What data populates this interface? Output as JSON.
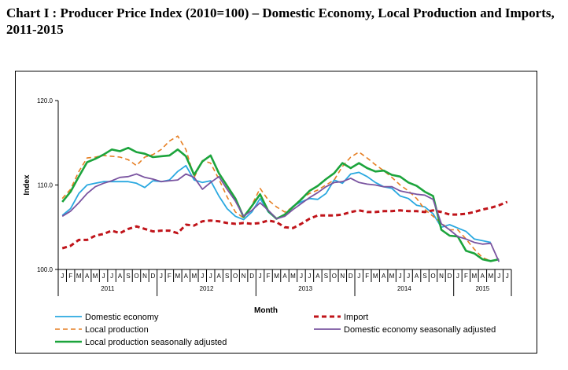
{
  "title": "Chart I : Producer Price Index (2010=100) –  Domestic Economy, Local Production and Imports, 2011-2015",
  "chart_data": {
    "type": "line",
    "title": "Chart I : Producer Price Index (2010=100) –  Domestic Economy, Local Production and Imports, 2011-2015",
    "xlabel": "Month",
    "ylabel": "Index",
    "ylim": [
      100.0,
      120.0
    ],
    "y_ticks": [
      "100.0",
      "110.0",
      "120.0"
    ],
    "grid": false,
    "legend_position": "bottom",
    "month_labels": [
      "J",
      "F",
      "M",
      "A",
      "M",
      "J",
      "J",
      "A",
      "S",
      "O",
      "N",
      "D",
      "J",
      "F",
      "M",
      "A",
      "M",
      "J",
      "J",
      "A",
      "S",
      "O",
      "N",
      "D",
      "J",
      "F",
      "M",
      "A",
      "M",
      "J",
      "J",
      "A",
      "S",
      "O",
      "N",
      "D",
      "J",
      "F",
      "M",
      "A",
      "M",
      "J",
      "J",
      "A",
      "S",
      "O",
      "N",
      "D",
      "J",
      "F",
      "M",
      "A",
      "M",
      "J",
      "J"
    ],
    "year_labels": [
      {
        "label": "2011",
        "start": 0,
        "end": 11
      },
      {
        "label": "2012",
        "start": 12,
        "end": 23
      },
      {
        "label": "2013",
        "start": 24,
        "end": 35
      },
      {
        "label": "2014",
        "start": 36,
        "end": 47
      },
      {
        "label": "2015",
        "start": 48,
        "end": 54
      }
    ],
    "series": [
      {
        "name": "Domestic economy",
        "color": "#29a8e0",
        "style": "solid",
        "values": [
          106.4,
          107.2,
          109.0,
          110.0,
          110.2,
          110.4,
          110.4,
          110.4,
          110.4,
          110.2,
          109.7,
          110.5,
          110.4,
          110.6,
          111.6,
          112.3,
          110.6,
          110.3,
          110.5,
          108.7,
          107.2,
          106.3,
          105.9,
          106.8,
          108.4,
          106.8,
          106.0,
          106.5,
          107.5,
          108.0,
          108.4,
          108.3,
          109.0,
          110.6,
          110.2,
          111.3,
          111.5,
          111.0,
          110.3,
          109.8,
          109.6,
          108.7,
          108.4,
          107.6,
          107.4,
          106.6,
          105.0,
          105.3,
          104.9,
          104.5,
          103.6,
          103.4,
          103.2
        ],
        "offset": 0
      },
      {
        "name": "Local production",
        "color": "#e67e22",
        "style": "dashed",
        "values": [
          108.4,
          109.5,
          111.6,
          113.2,
          113.3,
          113.5,
          113.4,
          113.3,
          113.0,
          112.3,
          113.3,
          113.6,
          114.2,
          115.2,
          115.8,
          114.2,
          110.9,
          112.9,
          112.6,
          110.7,
          108.6,
          106.8,
          106.1,
          107.6,
          109.6,
          108.2,
          107.4,
          106.8,
          107.4,
          108.4,
          109.0,
          109.4,
          110.0,
          110.6,
          112.2,
          113.3,
          113.9,
          113.2,
          112.4,
          111.7,
          110.9,
          110.0,
          109.3,
          108.4,
          107.1,
          106.3,
          105.5,
          104.7,
          104.7,
          103.6,
          102.4,
          101.4,
          101.0
        ],
        "offset": 0
      },
      {
        "name": "Local production seasonally adjusted",
        "color": "#1ca43c",
        "style": "solid",
        "values": [
          108.0,
          109.2,
          111.0,
          112.7,
          113.1,
          113.6,
          114.2,
          114.0,
          114.4,
          113.9,
          113.7,
          113.3,
          113.4,
          113.5,
          114.2,
          113.4,
          111.2,
          112.8,
          113.5,
          111.4,
          109.9,
          108.4,
          106.2,
          107.5,
          108.9,
          106.9,
          106.0,
          106.5,
          107.4,
          108.3,
          109.3,
          109.9,
          110.7,
          111.4,
          112.6,
          112.0,
          112.6,
          112.0,
          111.6,
          111.7,
          111.2,
          111.0,
          110.3,
          109.9,
          109.2,
          108.7,
          104.7,
          104.0,
          103.9,
          102.2,
          101.9,
          101.2,
          101.0,
          101.2
        ],
        "offset": 0
      },
      {
        "name": "Import",
        "color": "#c0141a",
        "style": "dashed",
        "values": [
          102.5,
          102.8,
          103.5,
          103.5,
          104.0,
          104.2,
          104.6,
          104.3,
          104.8,
          105.1,
          104.8,
          104.5,
          104.6,
          104.6,
          104.3,
          105.3,
          105.2,
          105.7,
          105.8,
          105.7,
          105.5,
          105.4,
          105.5,
          105.4,
          105.5,
          105.8,
          105.6,
          105.0,
          104.9,
          105.4,
          106.0,
          106.4,
          106.4,
          106.4,
          106.5,
          106.8,
          107.0,
          106.8,
          106.8,
          106.9,
          106.9,
          107.0,
          106.9,
          106.9,
          106.8,
          107.0,
          106.8,
          106.5,
          106.5,
          106.6,
          106.8,
          107.1,
          107.3,
          107.6,
          108.0
        ],
        "offset": 0
      },
      {
        "name": "Domestic economy seasonally adjusted",
        "color": "#7a54a0",
        "style": "solid",
        "values": [
          106.3,
          106.9,
          107.9,
          109.0,
          109.8,
          110.2,
          110.5,
          110.9,
          111.0,
          111.3,
          110.9,
          110.7,
          110.4,
          110.5,
          110.6,
          111.3,
          110.9,
          109.5,
          110.3,
          111.0,
          109.5,
          108.1,
          106.3,
          107.0,
          107.9,
          107.0,
          106.0,
          106.3,
          107.1,
          107.8,
          108.5,
          109.1,
          109.8,
          110.3,
          110.4,
          110.8,
          110.3,
          110.1,
          110.0,
          109.8,
          109.8,
          109.3,
          109.1,
          108.9,
          108.8,
          108.3,
          105.4,
          104.7,
          103.9,
          103.6,
          103.2,
          103.0,
          103.1,
          100.9
        ],
        "offset": 0
      }
    ],
    "legend": [
      {
        "label": "Domestic economy",
        "color": "#29a8e0",
        "style": "solid"
      },
      {
        "label": "Import",
        "color": "#c0141a",
        "style": "dashed"
      },
      {
        "label": "Local production",
        "color": "#e67e22",
        "style": "dashed"
      },
      {
        "label": "Domestic economy seasonally adjusted",
        "color": "#7a54a0",
        "style": "solid"
      },
      {
        "label": "Local production seasonally adjusted",
        "color": "#1ca43c",
        "style": "solid"
      }
    ]
  }
}
